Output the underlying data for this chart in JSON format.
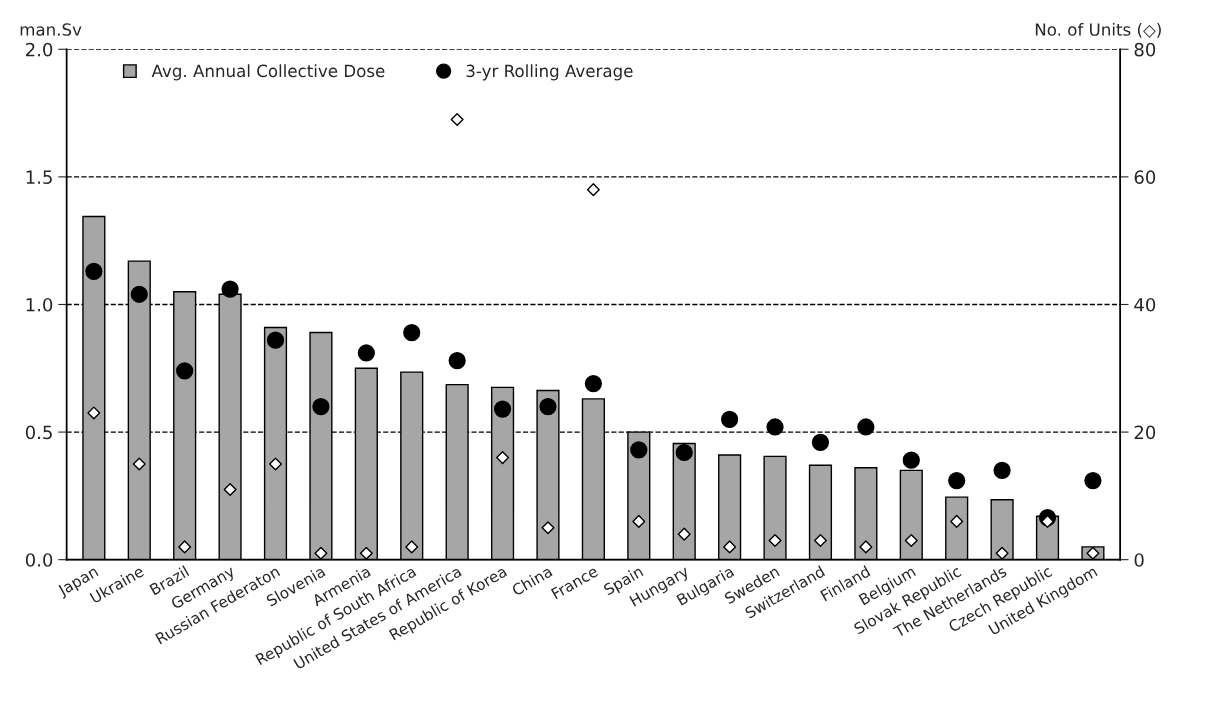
{
  "chart_data": {
    "type": "bar",
    "categories": [
      "Japan",
      "Ukraine",
      "Brazil",
      "Germany",
      "Russian Federaton",
      "Slovenia",
      "Armenia",
      "Republic of South Africa",
      "United States of America",
      "Republic of Korea",
      "China",
      "France",
      "Spain",
      "Hungary",
      "Bulgaria",
      "Sweden",
      "Switzerland",
      "Finland",
      "Belgium",
      "Slovak Republic",
      "The Netherlands",
      "Czech Republic",
      "United Kingdom"
    ],
    "series": [
      {
        "name": "Avg. Annual Collective Dose",
        "color": "#a6a6a6",
        "values": [
          1.345,
          1.17,
          1.05,
          1.04,
          0.91,
          0.89,
          0.75,
          0.735,
          0.686,
          0.675,
          0.663,
          0.63,
          0.5,
          0.455,
          0.41,
          0.405,
          0.37,
          0.36,
          0.35,
          0.245,
          0.235,
          0.17,
          0.05
        ]
      },
      {
        "name": "3-yr Rolling Average",
        "type": "scatter",
        "marker": "circle",
        "color": "#000000",
        "values": [
          1.13,
          1.04,
          0.74,
          1.06,
          0.86,
          0.6,
          0.81,
          0.89,
          0.78,
          0.59,
          0.6,
          0.69,
          0.43,
          0.42,
          0.55,
          0.52,
          0.46,
          0.52,
          0.39,
          0.31,
          0.35,
          0.165,
          0.31
        ]
      },
      {
        "type": "scatter",
        "marker": "diamond",
        "axis": "y2",
        "color": "#ffffff",
        "values": [
          23,
          15,
          2,
          11,
          15,
          1,
          1,
          2,
          69,
          16,
          5,
          58,
          6,
          4,
          2,
          3,
          3,
          2,
          3,
          6,
          1,
          6,
          1
        ]
      }
    ],
    "ylabel": "man.Sv",
    "y2label": "No. of Units (◇)",
    "ylim": [
      0,
      2.0
    ],
    "yticks": [
      {
        "value": 0,
        "label": "0.0"
      },
      0.5,
      {
        "value": 1,
        "label": "1.0"
      },
      1.5,
      {
        "value": 2,
        "label": "2.0"
      }
    ],
    "y2lim": [
      0,
      80
    ],
    "y2ticks": [
      0,
      20,
      40,
      60,
      80
    ],
    "grid": "y",
    "legend": "top left"
  }
}
